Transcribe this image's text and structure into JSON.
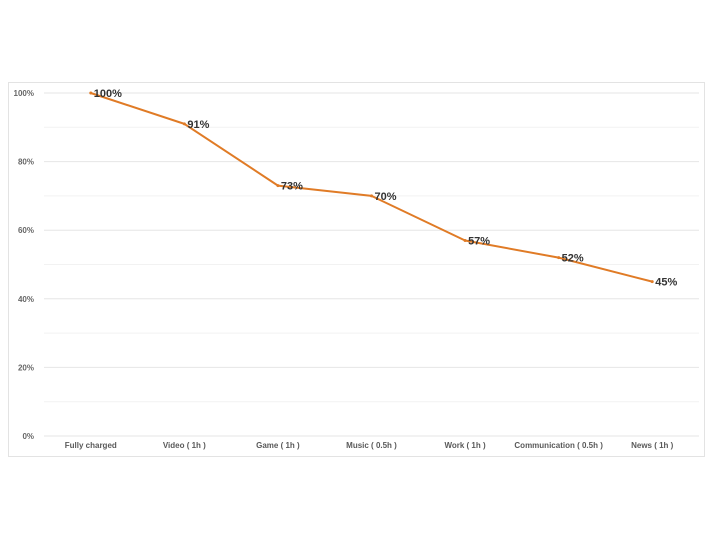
{
  "chart_data": {
    "type": "line",
    "title": "",
    "xlabel": "",
    "ylabel": "",
    "categories": [
      "Fully charged",
      "Video ( 1h )",
      "Game ( 1h )",
      "Music ( 0.5h )",
      "Work ( 1h )",
      "Communication ( 0.5h )",
      "News ( 1h )"
    ],
    "series": [
      {
        "values": [
          100,
          91,
          73,
          70,
          57,
          52,
          45
        ],
        "labels": [
          "100%",
          "91%",
          "73%",
          "70%",
          "57%",
          "52%",
          "45%"
        ],
        "color": "#E07B26"
      }
    ],
    "yticks": [
      "0%",
      "20%",
      "40%",
      "60%",
      "80%",
      "100%"
    ],
    "ylim": [
      0,
      100
    ],
    "grid": true,
    "legend": "none"
  }
}
